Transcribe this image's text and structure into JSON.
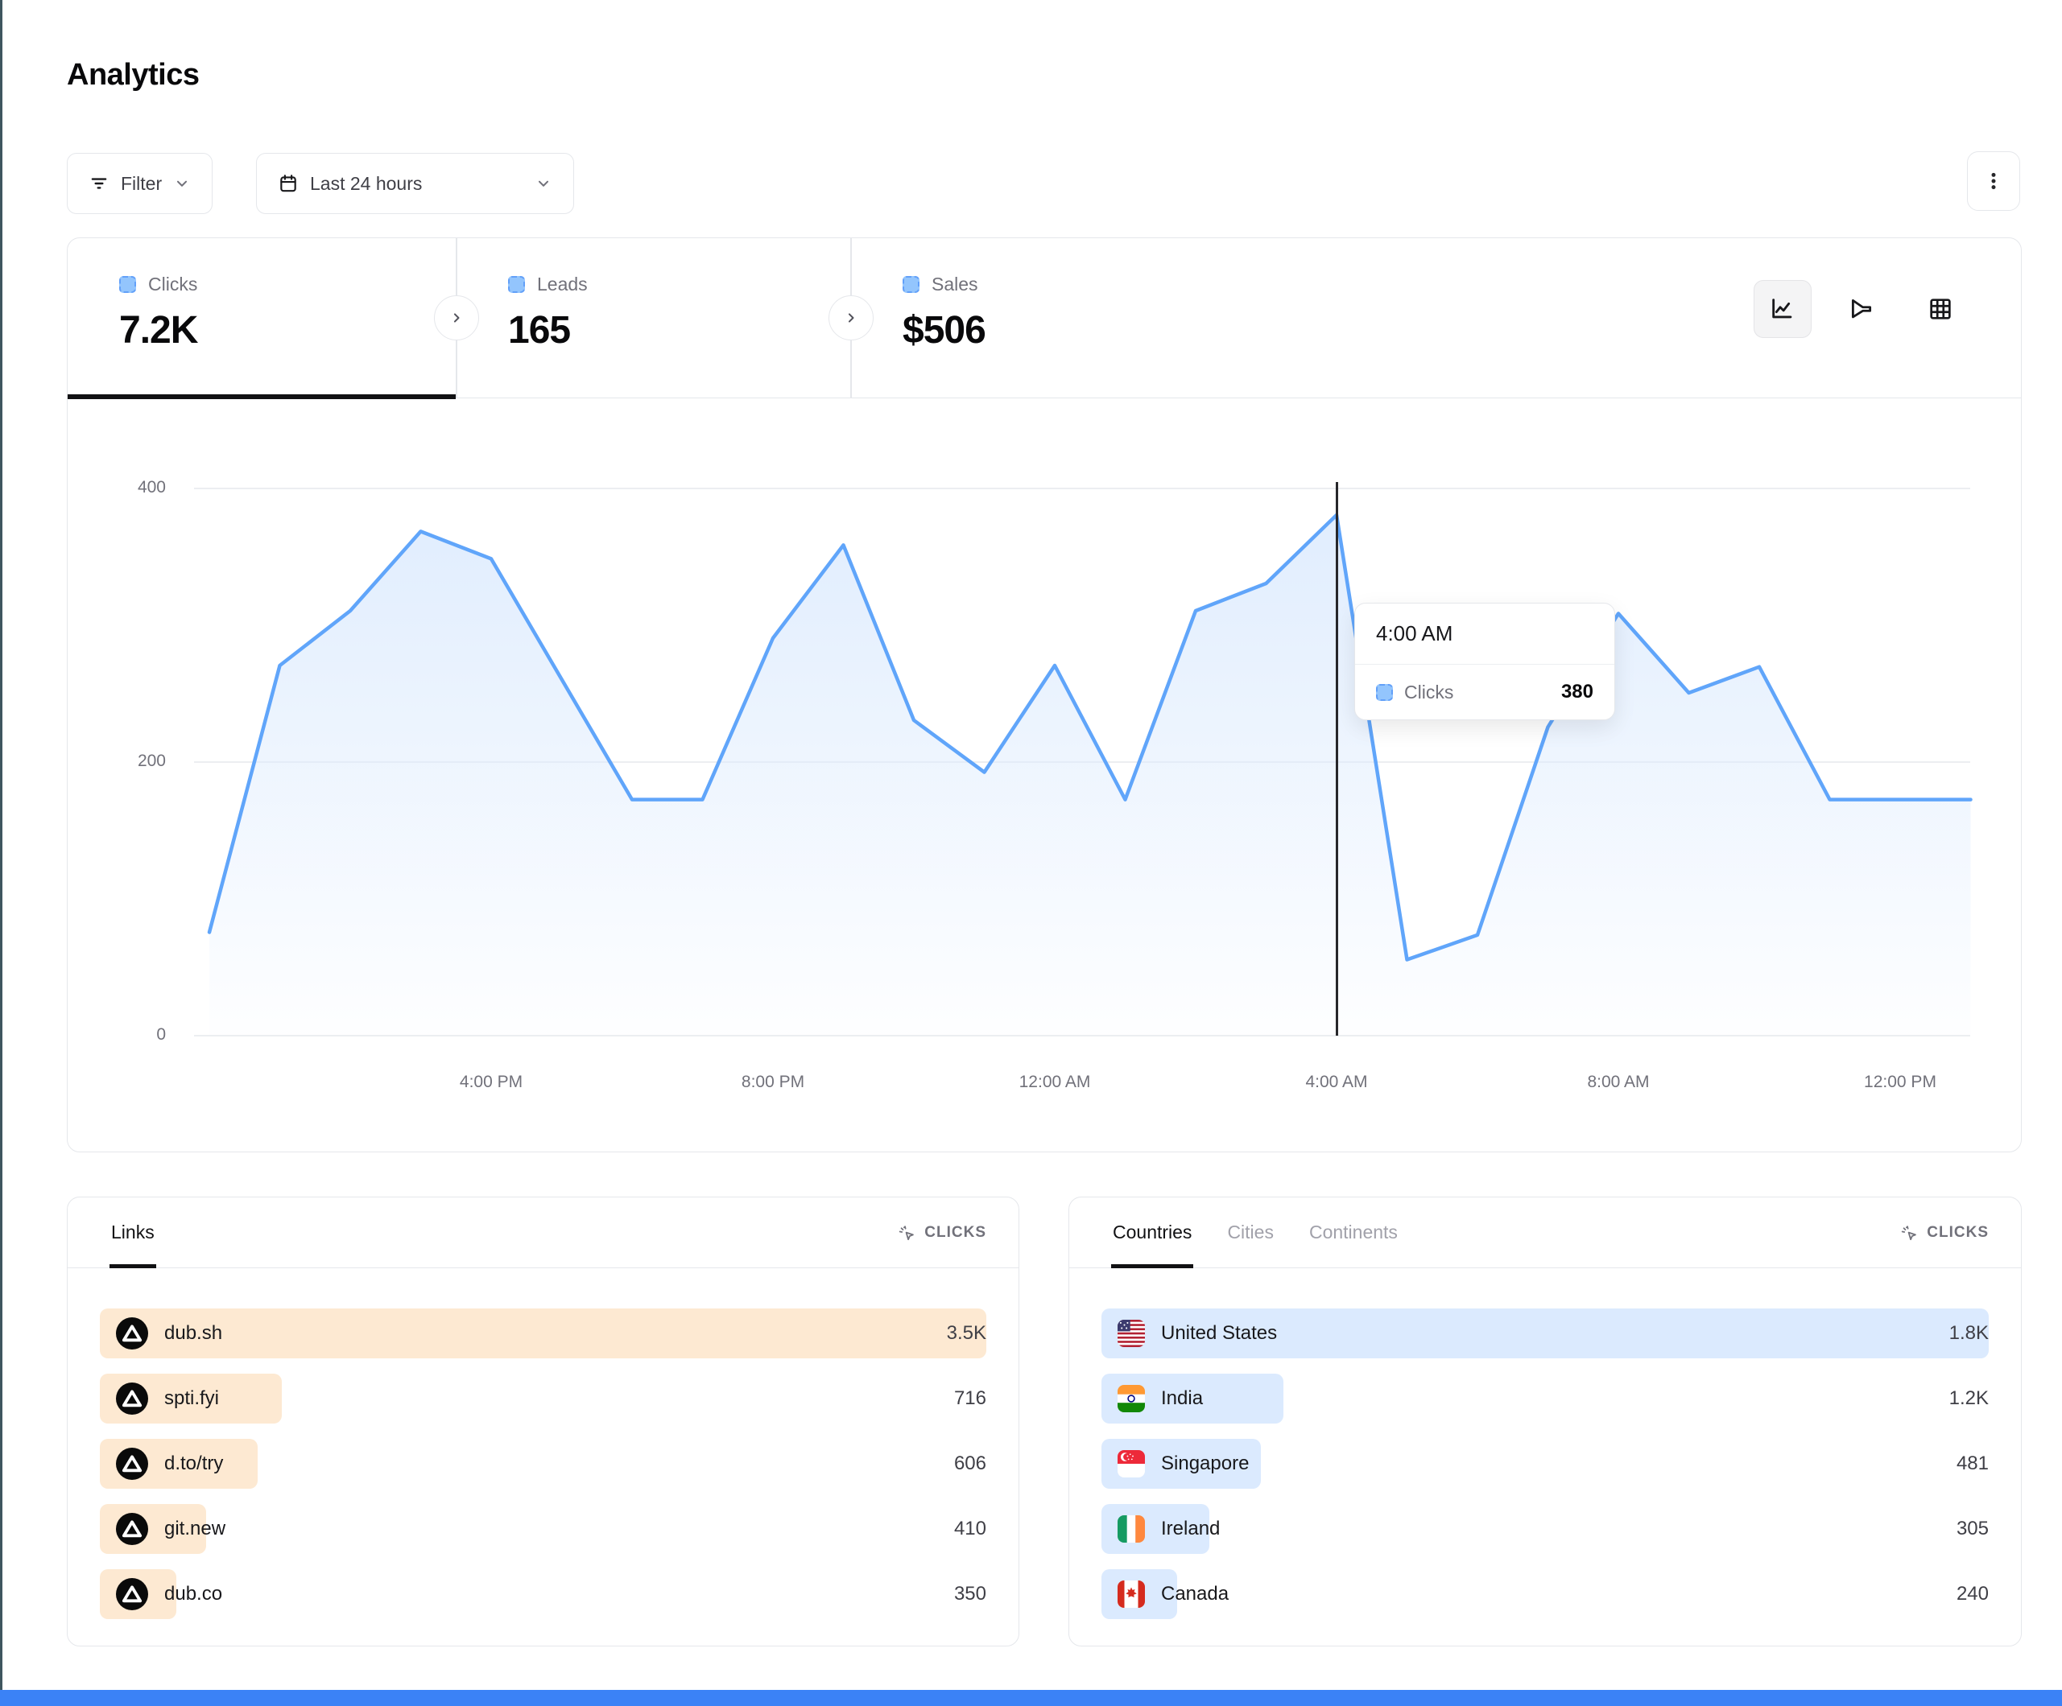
{
  "page": {
    "title": "Analytics"
  },
  "toolbar": {
    "filter_label": "Filter",
    "date_range_label": "Last 24 hours"
  },
  "metrics": [
    {
      "label": "Clicks",
      "value": "7.2K",
      "active": true
    },
    {
      "label": "Leads",
      "value": "165",
      "active": false
    },
    {
      "label": "Sales",
      "value": "$506",
      "active": false
    }
  ],
  "chart_toolbar": {
    "icons": [
      "line-chart",
      "funnel-chart",
      "table-grid"
    ]
  },
  "chart_data": {
    "type": "area",
    "title": "Clicks over the last 24 hours",
    "series_name": "Clicks",
    "x": [
      "12:00 PM",
      "1:00 PM",
      "2:00 PM",
      "3:00 PM",
      "4:00 PM",
      "5:00 PM",
      "6:00 PM",
      "7:00 PM",
      "8:00 PM",
      "9:00 PM",
      "10:00 PM",
      "11:00 PM",
      "12:00 AM",
      "1:00 AM",
      "2:00 AM",
      "3:00 AM",
      "4:00 AM",
      "5:00 AM",
      "6:00 AM",
      "7:00 AM",
      "8:00 AM",
      "9:00 AM",
      "10:00 AM",
      "11:00 AM",
      "12:00 PM",
      "1:00 PM"
    ],
    "values": [
      75,
      270,
      310,
      368,
      348,
      260,
      172,
      172,
      290,
      358,
      230,
      192,
      270,
      172,
      310,
      330,
      380,
      55,
      73,
      225,
      308,
      250,
      269,
      172,
      172,
      172
    ],
    "ylim": [
      0,
      400
    ],
    "yticks": [
      400,
      200,
      0
    ],
    "xticks": [
      "4:00 PM",
      "8:00 PM",
      "12:00 AM",
      "4:00 AM",
      "8:00 AM",
      "12:00 PM"
    ],
    "grid": true,
    "legend_position": "none",
    "line_color": "#60a5fa",
    "fill_color": "#dbeafe"
  },
  "tooltip": {
    "time": "4:00 AM",
    "series": "Clicks",
    "value": "380"
  },
  "links_panel": {
    "tabs": [
      {
        "label": "Links",
        "active": true
      }
    ],
    "metric_label": "CLICKS",
    "bar_color": "#fde9d2",
    "rows": [
      {
        "name": "dub.sh",
        "value": "3.5K",
        "bar_pct": 100
      },
      {
        "name": "spti.fyi",
        "value": "716",
        "bar_pct": 20.5
      },
      {
        "name": "d.to/try",
        "value": "606",
        "bar_pct": 17.8
      },
      {
        "name": "git.new",
        "value": "410",
        "bar_pct": 12.0
      },
      {
        "name": "dub.co",
        "value": "350",
        "bar_pct": 8.6
      }
    ]
  },
  "countries_panel": {
    "tabs": [
      {
        "label": "Countries",
        "active": true
      },
      {
        "label": "Cities",
        "active": false
      },
      {
        "label": "Continents",
        "active": false
      }
    ],
    "metric_label": "CLICKS",
    "bar_color": "#dbeafe",
    "rows": [
      {
        "name": "United States",
        "flag": "us",
        "value": "1.8K",
        "bar_pct": 100
      },
      {
        "name": "India",
        "flag": "in",
        "value": "1.2K",
        "bar_pct": 20.5
      },
      {
        "name": "Singapore",
        "flag": "sg",
        "value": "481",
        "bar_pct": 18.0
      },
      {
        "name": "Ireland",
        "flag": "ie",
        "value": "305",
        "bar_pct": 12.2
      },
      {
        "name": "Canada",
        "flag": "ca",
        "value": "240",
        "bar_pct": 8.5
      }
    ]
  },
  "colors": {
    "accent_blue": "#60a5fa",
    "legend_square": "#93c5fd",
    "links_bar": "#fde9d2",
    "country_bar": "#dbeafe",
    "left_edge": "#3f565f",
    "bottom_bar": "#3b82f6",
    "border": "#e5e7eb",
    "muted_text": "#71717a"
  }
}
